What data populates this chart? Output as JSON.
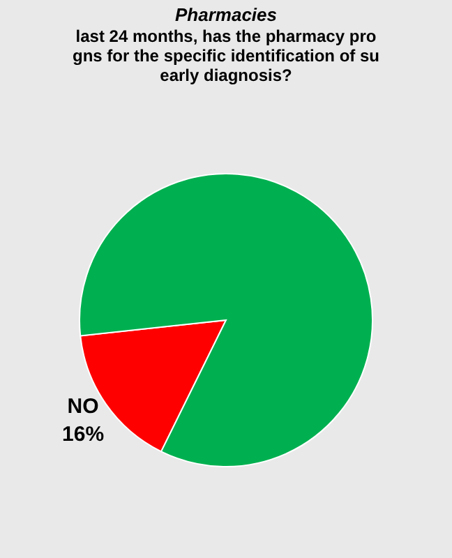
{
  "chart_data": {
    "type": "pie",
    "title": [
      "Pharmacies"
    ],
    "subtitle": [
      "last 24 months, has the pharmacy pro",
      "gns for the specific identification of su",
      "early diagnosis?"
    ],
    "categories": [
      "NO",
      null
    ],
    "values": [
      16,
      84
    ],
    "colors": [
      "#ff0000",
      "#00b050"
    ],
    "value_labels": [
      "16%",
      null
    ]
  }
}
